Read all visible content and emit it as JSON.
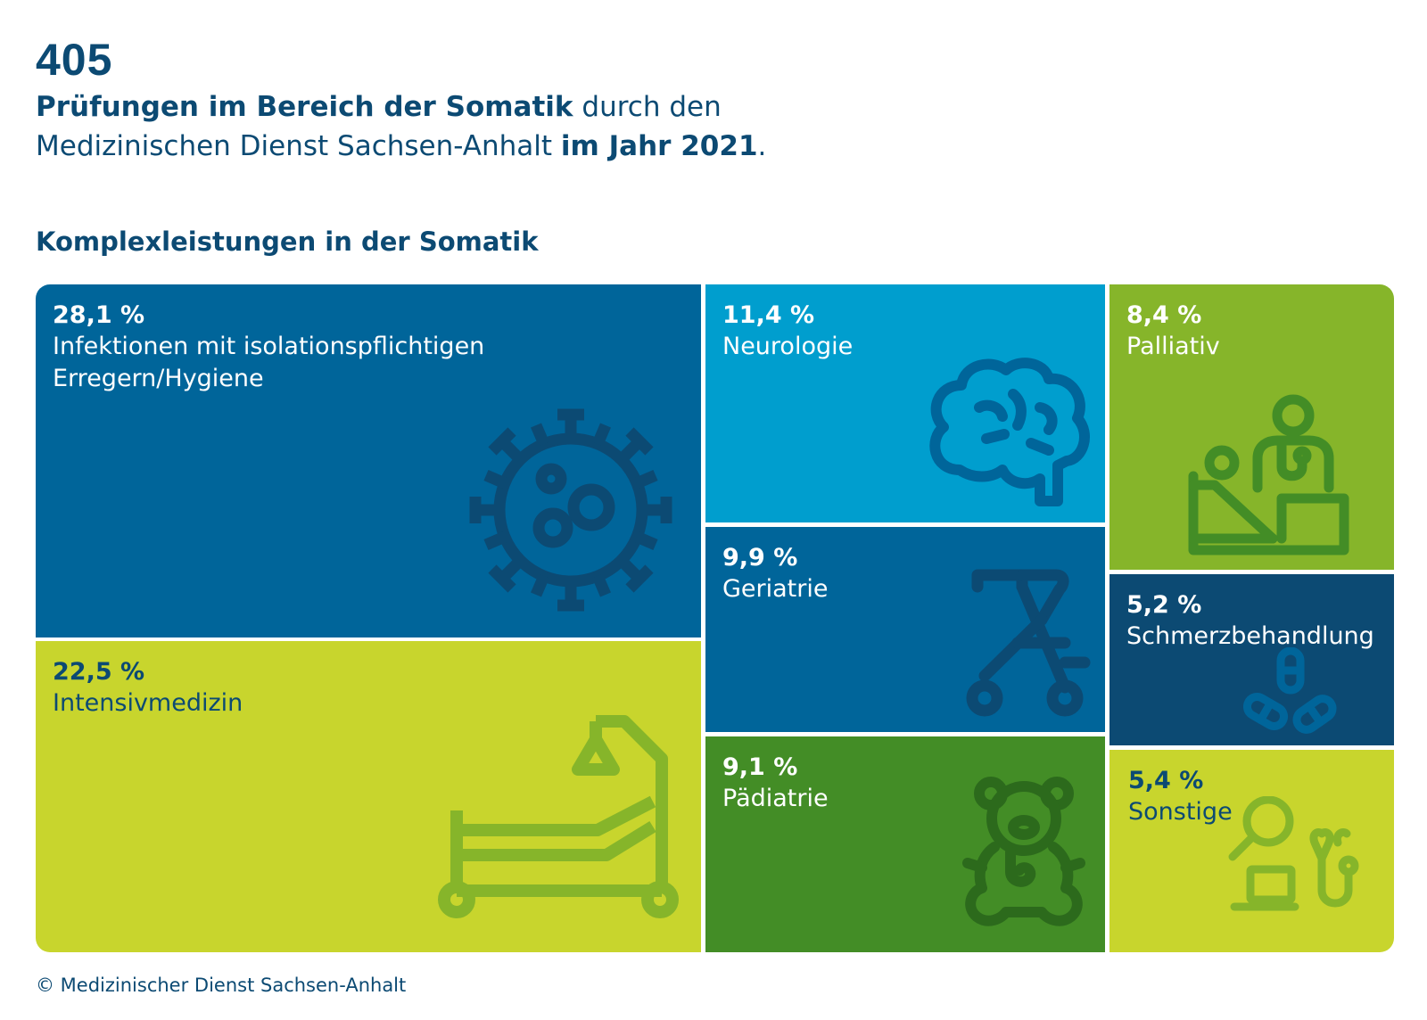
{
  "header": {
    "big_number": "405",
    "line1_bold": "Prüfungen im Bereich der Somatik",
    "line1_rest": " durch den",
    "line2_start": "Medizinischen Dienst Sachsen-Anhalt ",
    "line2_bold": "im Jahr 2021",
    "line2_end": "."
  },
  "chart_data": {
    "type": "treemap",
    "title": "Komplexleistungen in der Somatik",
    "unit": "%",
    "items": [
      {
        "key": "infektionen",
        "label": "Infektionen mit isolationspflichtigen\nErregern/Hygiene",
        "value": 28.1,
        "value_text": "28,1 %",
        "color": "#00659a",
        "text_color": "#ffffff",
        "pct_color": "#ffffff",
        "icon": "virus-icon",
        "icon_color": "#0c4a73"
      },
      {
        "key": "intensiv",
        "label": "Intensivmedizin",
        "value": 22.5,
        "value_text": "22,5 %",
        "color": "#c8d52d",
        "text_color": "#0c4a73",
        "pct_color": "#0c4a73",
        "icon": "hospital-bed-icon",
        "icon_color": "#86b52a"
      },
      {
        "key": "neuro",
        "label": "Neurologie",
        "value": 11.4,
        "value_text": "11,4 %",
        "color": "#009ece",
        "text_color": "#ffffff",
        "pct_color": "#ffffff",
        "icon": "brain-icon",
        "icon_color": "#00659a"
      },
      {
        "key": "geriatrie",
        "label": "Geriatrie",
        "value": 9.9,
        "value_text": "9,9 %",
        "color": "#00659a",
        "text_color": "#ffffff",
        "pct_color": "#ffffff",
        "icon": "walker-icon",
        "icon_color": "#0c4a73"
      },
      {
        "key": "paediatrie",
        "label": "Pädiatrie",
        "value": 9.1,
        "value_text": "9,1 %",
        "color": "#438d26",
        "text_color": "#ffffff",
        "pct_color": "#ffffff",
        "icon": "teddy-bear-icon",
        "icon_color": "#2c6a1c"
      },
      {
        "key": "palliativ",
        "label": "Palliativ",
        "value": 8.4,
        "value_text": "8,4 %",
        "color": "#86b52a",
        "text_color": "#ffffff",
        "pct_color": "#ffffff",
        "icon": "palliative-care-icon",
        "icon_color": "#438d26"
      },
      {
        "key": "schmerz",
        "label": "Schmerzbehandlung",
        "value": 5.2,
        "value_text": "5,2 %",
        "color": "#0c4a73",
        "text_color": "#ffffff",
        "pct_color": "#ffffff",
        "icon": "pills-icon",
        "icon_color": "#00659a"
      },
      {
        "key": "sonstige",
        "label": "Sonstige",
        "value": 5.4,
        "value_text": "5,4 %",
        "color": "#c8d52d",
        "text_color": "#0c4a73",
        "pct_color": "#0c4a73",
        "icon": "magnifier-laptop-stethoscope-icon",
        "icon_color": "#86b52a"
      }
    ]
  },
  "footer": {
    "copyright": "© Medizinischer Dienst Sachsen-Anhalt"
  }
}
